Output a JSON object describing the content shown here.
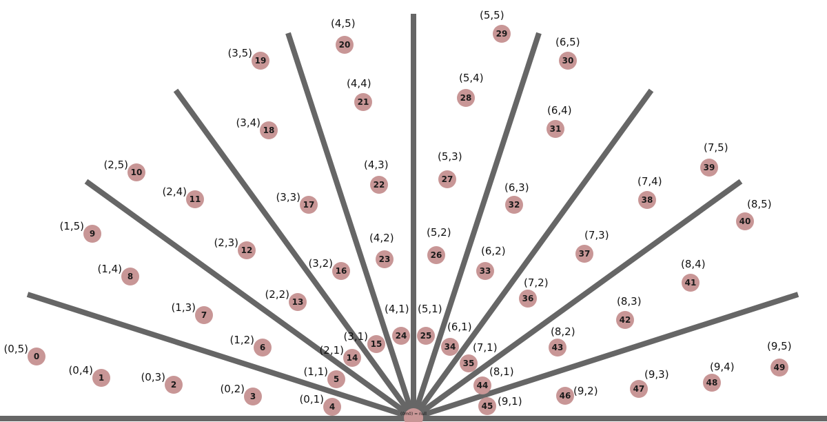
{
  "diagram": {
    "origin_label": "(0m0) = null",
    "colors": {
      "ray": "#666666",
      "node": "#c89696",
      "text": "#111111"
    },
    "nodes": [
      {
        "id": "0",
        "coord": "(0,5)"
      },
      {
        "id": "1",
        "coord": "(0,4)"
      },
      {
        "id": "2",
        "coord": "(0,3)"
      },
      {
        "id": "3",
        "coord": "(0,2)"
      },
      {
        "id": "4",
        "coord": "(0,1)"
      },
      {
        "id": "5",
        "coord": "(1,1)"
      },
      {
        "id": "6",
        "coord": "(1,2)"
      },
      {
        "id": "7",
        "coord": "(1,3)"
      },
      {
        "id": "8",
        "coord": "(1,4)"
      },
      {
        "id": "9",
        "coord": "(1,5)"
      },
      {
        "id": "10",
        "coord": "(2,5)"
      },
      {
        "id": "11",
        "coord": "(2,4)"
      },
      {
        "id": "12",
        "coord": "(2,3)"
      },
      {
        "id": "13",
        "coord": "(2,2)"
      },
      {
        "id": "14",
        "coord": "(2,1)"
      },
      {
        "id": "15",
        "coord": "(3,1)"
      },
      {
        "id": "16",
        "coord": "(3,2)"
      },
      {
        "id": "17",
        "coord": "(3,3)"
      },
      {
        "id": "18",
        "coord": "(3,4)"
      },
      {
        "id": "19",
        "coord": "(3,5)"
      },
      {
        "id": "20",
        "coord": "(4,5)"
      },
      {
        "id": "21",
        "coord": "(4,4)"
      },
      {
        "id": "22",
        "coord": "(4,3)"
      },
      {
        "id": "23",
        "coord": "(4,2)"
      },
      {
        "id": "24",
        "coord": "(4,1)"
      },
      {
        "id": "25",
        "coord": "(5,1)"
      },
      {
        "id": "26",
        "coord": "(5,2)"
      },
      {
        "id": "27",
        "coord": "(5,3)"
      },
      {
        "id": "28",
        "coord": "(5,4)"
      },
      {
        "id": "29",
        "coord": "(5,5)"
      },
      {
        "id": "30",
        "coord": "(6,5)"
      },
      {
        "id": "31",
        "coord": "(6,4)"
      },
      {
        "id": "32",
        "coord": "(6,3)"
      },
      {
        "id": "33",
        "coord": "(6,2)"
      },
      {
        "id": "34",
        "coord": "(6,1)"
      },
      {
        "id": "35",
        "coord": "(7,1)"
      },
      {
        "id": "36",
        "coord": "(7,2)"
      },
      {
        "id": "37",
        "coord": "(7,3)"
      },
      {
        "id": "38",
        "coord": "(7,4)"
      },
      {
        "id": "39",
        "coord": "(7,5)"
      },
      {
        "id": "40",
        "coord": "(8,5)"
      },
      {
        "id": "41",
        "coord": "(8,4)"
      },
      {
        "id": "42",
        "coord": "(8,3)"
      },
      {
        "id": "43",
        "coord": "(8,2)"
      },
      {
        "id": "44",
        "coord": "(8,1)"
      },
      {
        "id": "45",
        "coord": "(9,1)"
      },
      {
        "id": "46",
        "coord": "(9,2)"
      },
      {
        "id": "47",
        "coord": "(9,3)"
      },
      {
        "id": "48",
        "coord": "(9,4)"
      },
      {
        "id": "49",
        "coord": "(9,5)"
      }
    ]
  }
}
